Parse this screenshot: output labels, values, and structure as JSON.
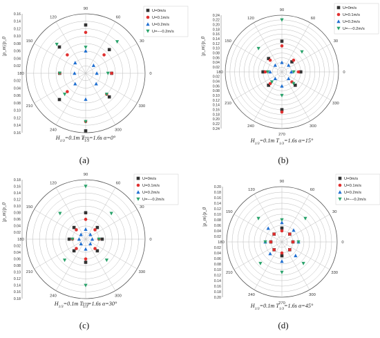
{
  "figure": {
    "angle_labels": [
      "90",
      "60",
      "30",
      "0",
      "330",
      "300",
      "270",
      "240",
      "210",
      "180",
      "150",
      "120"
    ],
    "legend": [
      "U=0m/s",
      "U=0.1m/s",
      "U=0.2m/s",
      "U=−−0.2m/s"
    ],
    "legend_b": [
      "U=0m/s",
      "U=0.1m/s",
      "U=0.2m/s",
      "U=−−0.2m/s"
    ],
    "colors": {
      "s1": "#333333",
      "s2": "#e03030",
      "s3": "#1f6fd1",
      "s4": "#2aa36b"
    }
  },
  "chart_data": [
    {
      "type": "scatter",
      "panel_label": "(a)",
      "caption": "H1/3=0.1m T1/3=1.6s α=0°",
      "caption_parts": {
        "h": "H",
        "hs": "1/3",
        "h2": "=0.1m ",
        "t": "T",
        "ts": "1/3",
        "t2": "=1.6s ",
        "a": "α=0°"
      },
      "ylabel": "|p_m|/p_0",
      "rmax": 0.16,
      "ticks": [
        "0.02",
        "0.04",
        "0.06",
        "0.08",
        "0.10",
        "0.12",
        "0.14",
        "0.16"
      ],
      "tick_values": [
        0.02,
        0.04,
        0.06,
        0.08,
        0.1,
        0.12,
        0.14,
        0.16
      ],
      "angles_deg": [
        0,
        45,
        90,
        135,
        180,
        225,
        270,
        315
      ],
      "series": [
        {
          "name": "U=0m/s",
          "marker": "square",
          "r": [
            0.07,
            0.09,
            0.13,
            0.1,
            0.07,
            0.1,
            0.155,
            0.09
          ]
        },
        {
          "name": "U=0.1m/s",
          "marker": "circle",
          "r": [
            0.07,
            0.07,
            0.11,
            0.07,
            0.07,
            0.07,
            0.13,
            0.08
          ]
        },
        {
          "name": "U=0.2m/s",
          "marker": "triangle-up",
          "r": [
            0.03,
            0.03,
            0.06,
            0.04,
            0.03,
            0.04,
            0.07,
            0.04
          ]
        },
        {
          "name": "U=−−0.2m/s",
          "marker": "triangle-down",
          "r": [
            0.06,
            0.12,
            0.07,
            0.11,
            0.07,
            0.08,
            0.13,
            0.08
          ]
        }
      ]
    },
    {
      "type": "scatter",
      "panel_label": "(b)",
      "caption": "H1/3=0.1m T1/3=1.6s α=15°",
      "caption_parts": {
        "h": "H",
        "hs": "1/3",
        "h2": "=0.1m ",
        "t": "T",
        "ts": "1/3",
        "t2": "=1.6s ",
        "a": "α=15°"
      },
      "ylabel": "|p_m|/p_0",
      "rmax": 0.24,
      "ticks": [
        "0.02",
        "0.04",
        "0.06",
        "0.08",
        "0.10",
        "0.12",
        "0.14",
        "0.16",
        "0.18",
        "0.20",
        "0.22",
        "0.24"
      ],
      "tick_values": [
        0.02,
        0.04,
        0.06,
        0.08,
        0.1,
        0.12,
        0.14,
        0.16,
        0.18,
        0.2,
        0.22,
        0.24
      ],
      "angles_deg": [
        0,
        45,
        90,
        135,
        180,
        225,
        270,
        315
      ],
      "series": [
        {
          "name": "U=0m/s",
          "marker": "square",
          "r": [
            0.08,
            0.06,
            0.13,
            0.08,
            0.08,
            0.08,
            0.16,
            0.08
          ]
        },
        {
          "name": "U=0.1m/s",
          "marker": "circle",
          "r": [
            0.07,
            0.07,
            0.11,
            0.07,
            0.07,
            0.07,
            0.17,
            0.06
          ]
        },
        {
          "name": "U=0.2m/s",
          "marker": "triangle-up",
          "r": [
            0.04,
            0.04,
            0.04,
            0.04,
            0.05,
            0.04,
            0.06,
            0.04
          ]
        },
        {
          "name": "U=−−0.2m/s",
          "marker": "triangle-down",
          "r": [
            0.05,
            0.12,
            0.22,
            0.14,
            0.06,
            0.06,
            0.1,
            0.07
          ]
        }
      ]
    },
    {
      "type": "scatter",
      "panel_label": "(c)",
      "caption": "H1/3=0.1m T1/3=1.6s α=30°",
      "caption_parts": {
        "h": "H",
        "hs": "1/3",
        "h2": "=0.1m ",
        "t": "T",
        "ts": "1/3",
        "t2": "=1.6s ",
        "a": "α=30°"
      },
      "ylabel": "|p_m|/p_0",
      "rmax": 0.18,
      "ticks": [
        "0.02",
        "0.04",
        "0.06",
        "0.08",
        "0.10",
        "0.12",
        "0.14",
        "0.16",
        "0.18"
      ],
      "tick_values": [
        0.02,
        0.04,
        0.06,
        0.08,
        0.1,
        0.12,
        0.14,
        0.16,
        0.18
      ],
      "angles_deg": [
        0,
        45,
        90,
        135,
        180,
        225,
        270,
        315
      ],
      "series": [
        {
          "name": "U=0m/s",
          "marker": "square",
          "r": [
            0.05,
            0.05,
            0.08,
            0.05,
            0.05,
            0.05,
            0.07,
            0.05
          ]
        },
        {
          "name": "U=0.1m/s",
          "marker": "circle",
          "r": [
            0.04,
            0.04,
            0.06,
            0.04,
            0.04,
            0.04,
            0.06,
            0.04
          ]
        },
        {
          "name": "U=0.2m/s",
          "marker": "triangle-up",
          "r": [
            0.02,
            0.02,
            0.03,
            0.02,
            0.02,
            0.02,
            0.03,
            0.02
          ]
        },
        {
          "name": "U=−−0.2m/s",
          "marker": "triangle-down",
          "r": [
            0.04,
            0.11,
            0.16,
            0.11,
            0.04,
            0.09,
            0.14,
            0.09
          ]
        }
      ]
    },
    {
      "type": "scatter",
      "panel_label": "(d)",
      "caption": "H1/3=0.1m T1/3=1.6s α=45°",
      "caption_parts": {
        "h": "H",
        "hs": "1/3",
        "h2": "=0.1m ",
        "t": "T",
        "ts": "1/3",
        "t2": "=1.6s ",
        "a": "α=45°"
      },
      "ylabel": "|p_m|/p_0",
      "rmax": 0.2,
      "ticks": [
        "0.02",
        "0.04",
        "0.06",
        "0.08",
        "0.10",
        "0.12",
        "0.14",
        "0.16",
        "0.18",
        "0.20"
      ],
      "tick_values": [
        0.02,
        0.04,
        0.06,
        0.08,
        0.1,
        0.12,
        0.14,
        0.16,
        0.18,
        0.2
      ],
      "angles_deg": [
        0,
        45,
        90,
        135,
        180,
        225,
        270,
        315
      ],
      "series": [
        {
          "name": "U=0m/s",
          "marker": "square",
          "r": [
            0.04,
            0.04,
            0.05,
            0.04,
            0.04,
            0.04,
            0.05,
            0.04
          ]
        },
        {
          "name": "U=0.1m/s",
          "marker": "circle",
          "r": [
            0.04,
            0.04,
            0.04,
            0.04,
            0.04,
            0.04,
            0.04,
            0.04
          ]
        },
        {
          "name": "U=0.2m/s",
          "marker": "triangle-up",
          "r": [
            0.06,
            0.06,
            0.07,
            0.07,
            0.06,
            0.06,
            0.07,
            0.07
          ]
        },
        {
          "name": "U=−−0.2m/s",
          "marker": "triangle-down",
          "r": [
            0.06,
            0.12,
            0.08,
            0.12,
            0.06,
            0.11,
            0.11,
            0.11
          ]
        }
      ]
    }
  ]
}
